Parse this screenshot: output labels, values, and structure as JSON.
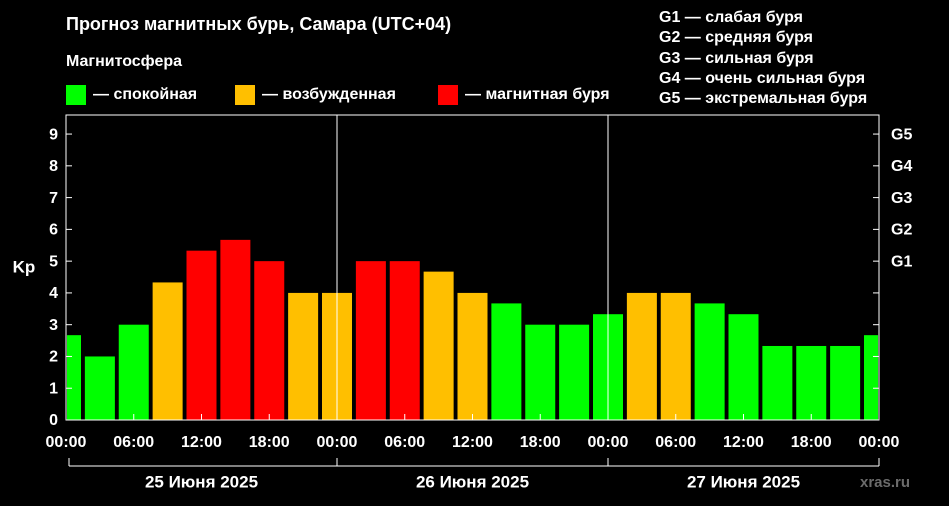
{
  "title": "Прогноз магнитных бурь, Самара (UTC+04)",
  "legend": {
    "heading": "Магнитосфера",
    "items": [
      {
        "label": "— спокойная",
        "color": "#00ff00"
      },
      {
        "label": "— возбужденная",
        "color": "#ffbf00"
      },
      {
        "label": "— магнитная буря",
        "color": "#ff0000"
      }
    ]
  },
  "storm_levels": [
    {
      "text": "G1 — слабая буря"
    },
    {
      "text": "G2 — средняя буря"
    },
    {
      "text": "G3 — сильная буря"
    },
    {
      "text": "G4 — очень сильная буря"
    },
    {
      "text": "G5 — экстремальная буря"
    }
  ],
  "watermark": "xras.ru",
  "chart_data": {
    "type": "bar",
    "ylabel": "Kp",
    "ylim": [
      0,
      9.6
    ],
    "y_ticks": [
      "0",
      "1",
      "2",
      "3",
      "4",
      "5",
      "6",
      "7",
      "8",
      "9"
    ],
    "g_ticks": [
      {
        "label": "G1",
        "kp": 5
      },
      {
        "label": "G2",
        "kp": 6
      },
      {
        "label": "G3",
        "kp": 7
      },
      {
        "label": "G4",
        "kp": 8
      },
      {
        "label": "G5",
        "kp": 9
      }
    ],
    "x_ticks": [
      "00:00",
      "06:00",
      "12:00",
      "18:00",
      "00:00",
      "06:00",
      "12:00",
      "18:00",
      "00:00",
      "06:00",
      "12:00",
      "18:00",
      "00:00"
    ],
    "days": [
      "25 Июня 2025",
      "26 Июня 2025",
      "27 Июня 2025"
    ],
    "interval_hours": 3,
    "colors": {
      "quiet": "#00ff00",
      "active": "#ffbf00",
      "storm": "#ff0000"
    },
    "values": [
      2.67,
      2.0,
      3.0,
      4.33,
      5.33,
      5.67,
      5.0,
      4.0,
      4.0,
      5.0,
      5.0,
      4.67,
      4.0,
      3.67,
      3.0,
      3.0,
      3.33,
      4.0,
      4.0,
      3.67,
      3.33,
      2.33,
      2.33,
      2.33,
      2.67
    ]
  }
}
